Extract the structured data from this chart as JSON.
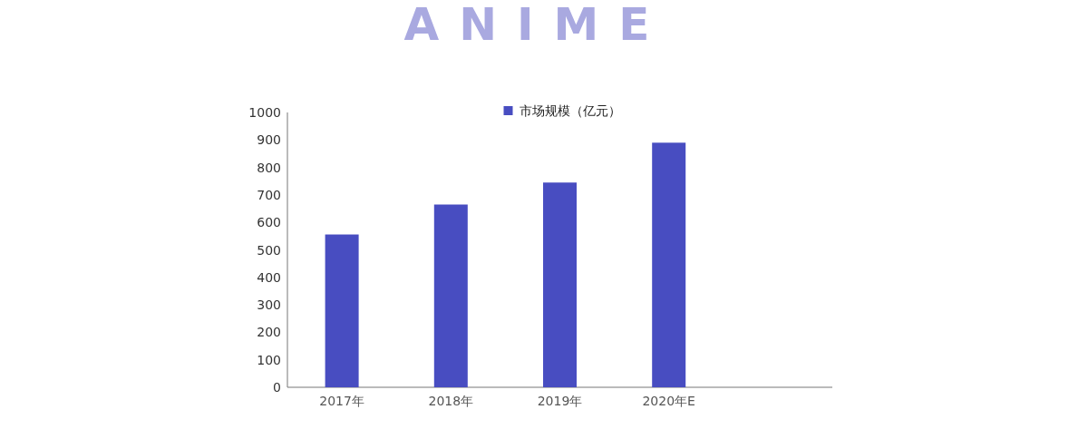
{
  "chart_data": {
    "type": "bar",
    "title": "ANIME",
    "categories": [
      "2017年",
      "2018年",
      "2019年",
      "2020年E",
      null
    ],
    "series": [
      {
        "name": "市场规模（亿元）",
        "color": "#484dc1",
        "values": [
          556,
          665,
          745,
          890,
          null
        ]
      }
    ],
    "ylim": [
      0,
      1000
    ],
    "yticks": [
      0,
      100,
      200,
      300,
      400,
      500,
      600,
      700,
      800,
      900,
      1000
    ],
    "grid": false,
    "legend": "top"
  }
}
